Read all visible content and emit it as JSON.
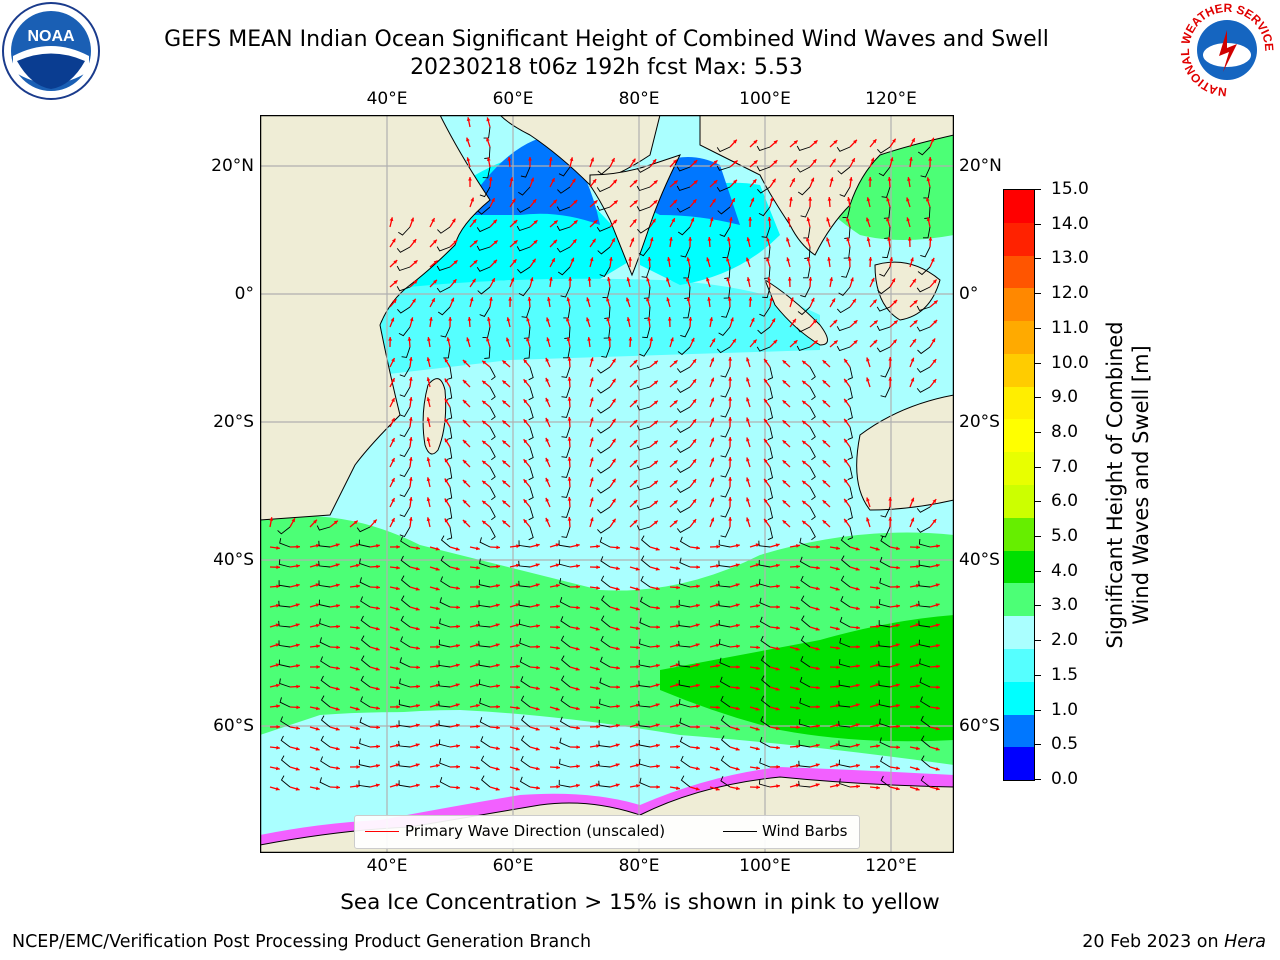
{
  "header": {
    "title_line1": "GEFS MEAN Indian Ocean Significant Height of Combined Wind Waves and Swell",
    "title_line2": "20230218 t06z 192h fcst   Max: 5.53"
  },
  "logos": {
    "left_text": "NOAA",
    "right_ring_text": "NATIONAL WEATHER SERVICE"
  },
  "map": {
    "lon_labels": [
      "40°E",
      "60°E",
      "80°E",
      "100°E",
      "120°E"
    ],
    "lat_labels": [
      "20°N",
      "0°",
      "20°S",
      "40°S",
      "60°S"
    ],
    "colors": {
      "land": "#efedd6",
      "ocean_light": "#aaffff",
      "ocean_cyan": "#00ffff",
      "ocean_blue": "#0077ff",
      "ocean_green": "#4cff76",
      "ocean_bright_green": "#00e000",
      "wave_arrow": "#ff0000",
      "wind_barb": "#000000",
      "sea_ice": "#ff44ff"
    },
    "legend": {
      "wave": "Primary Wave Direction (unscaled)",
      "wind": "Wind Barbs"
    }
  },
  "colorbar": {
    "label_line1": "Significant Height of Combined",
    "label_line2": "Wind Waves and Swell [m]",
    "ticks": [
      "15.0",
      "14.0",
      "13.0",
      "12.0",
      "11.0",
      "10.0",
      "9.0",
      "8.0",
      "7.0",
      "6.0",
      "5.0",
      "4.0",
      "3.0",
      "2.0",
      "1.5",
      "1.0",
      "0.5",
      "0.0"
    ],
    "colors": [
      "#ff0000",
      "#ff2200",
      "#ff5500",
      "#ff8800",
      "#ffaa00",
      "#ffcc00",
      "#ffee00",
      "#ffff00",
      "#e8ff00",
      "#ccff00",
      "#66ee00",
      "#00e000",
      "#4cff76",
      "#aaffff",
      "#55ffff",
      "#00ffff",
      "#0077ff",
      "#0000ff"
    ]
  },
  "caption": "Sea Ice Concentration > 15% is shown in pink to yellow",
  "footer": {
    "left": "NCEP/EMC/Verification Post Processing Product Generation Branch",
    "right_date": "20 Feb 2023 on ",
    "right_host": "Hera"
  }
}
